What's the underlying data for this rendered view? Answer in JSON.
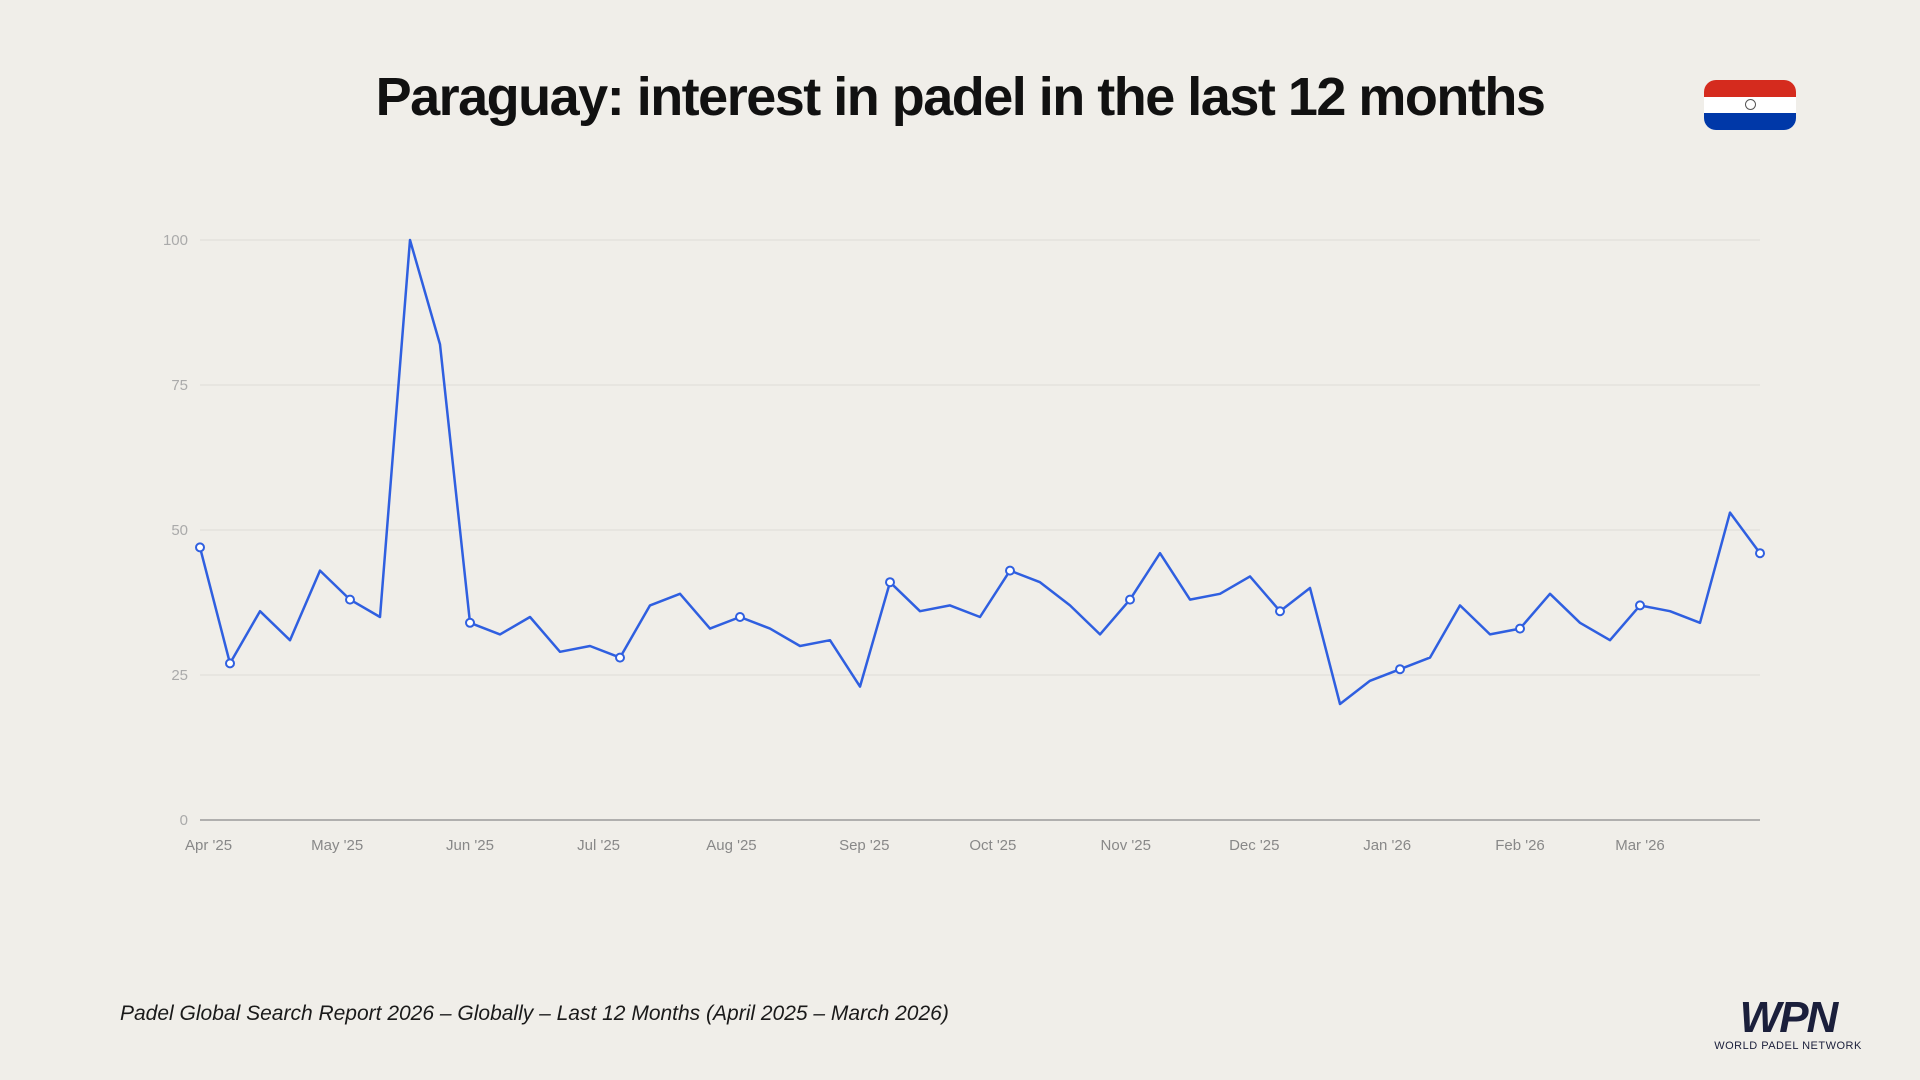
{
  "title": "Paraguay: interest in padel in the last 12 months",
  "flag": {
    "name": "paraguay-flag",
    "colors": [
      "#d52b1e",
      "#ffffff",
      "#0038a8"
    ]
  },
  "footer": "Padel Global Search Report 2026 – Globally – Last 12 Months (April 2025 – March 2026)",
  "logo": {
    "mark": "WPN",
    "subtitle": "WORLD PADEL NETWORK"
  },
  "chart_data": {
    "type": "line",
    "title": "",
    "xlabel": "",
    "ylabel": "",
    "ylim": [
      0,
      100
    ],
    "yticks": [
      0,
      25,
      50,
      75,
      100
    ],
    "xtick_labels": [
      "Apr '25",
      "May '25",
      "Jun '25",
      "Jul '25",
      "Aug '25",
      "Sep '25",
      "Oct '25",
      "Nov '25",
      "Dec '25",
      "Jan '26",
      "Feb '26",
      "Mar '26"
    ],
    "grid": true,
    "line_color": "#2f5fe0",
    "x_start": "2025-03-30",
    "x_step": "weekly",
    "values": [
      47,
      27,
      36,
      31,
      43,
      38,
      35,
      100,
      82,
      34,
      32,
      35,
      29,
      30,
      28,
      37,
      39,
      33,
      35,
      33,
      30,
      31,
      23,
      41,
      36,
      37,
      35,
      43,
      41,
      37,
      32,
      38,
      46,
      38,
      39,
      42,
      36,
      40,
      20,
      24,
      26,
      28,
      37,
      32,
      33,
      39,
      34,
      31,
      37,
      36,
      34,
      53,
      46
    ],
    "marked_points": [
      0,
      1,
      5,
      9,
      14,
      18,
      23,
      27,
      31,
      36,
      40,
      44,
      48,
      52
    ]
  }
}
